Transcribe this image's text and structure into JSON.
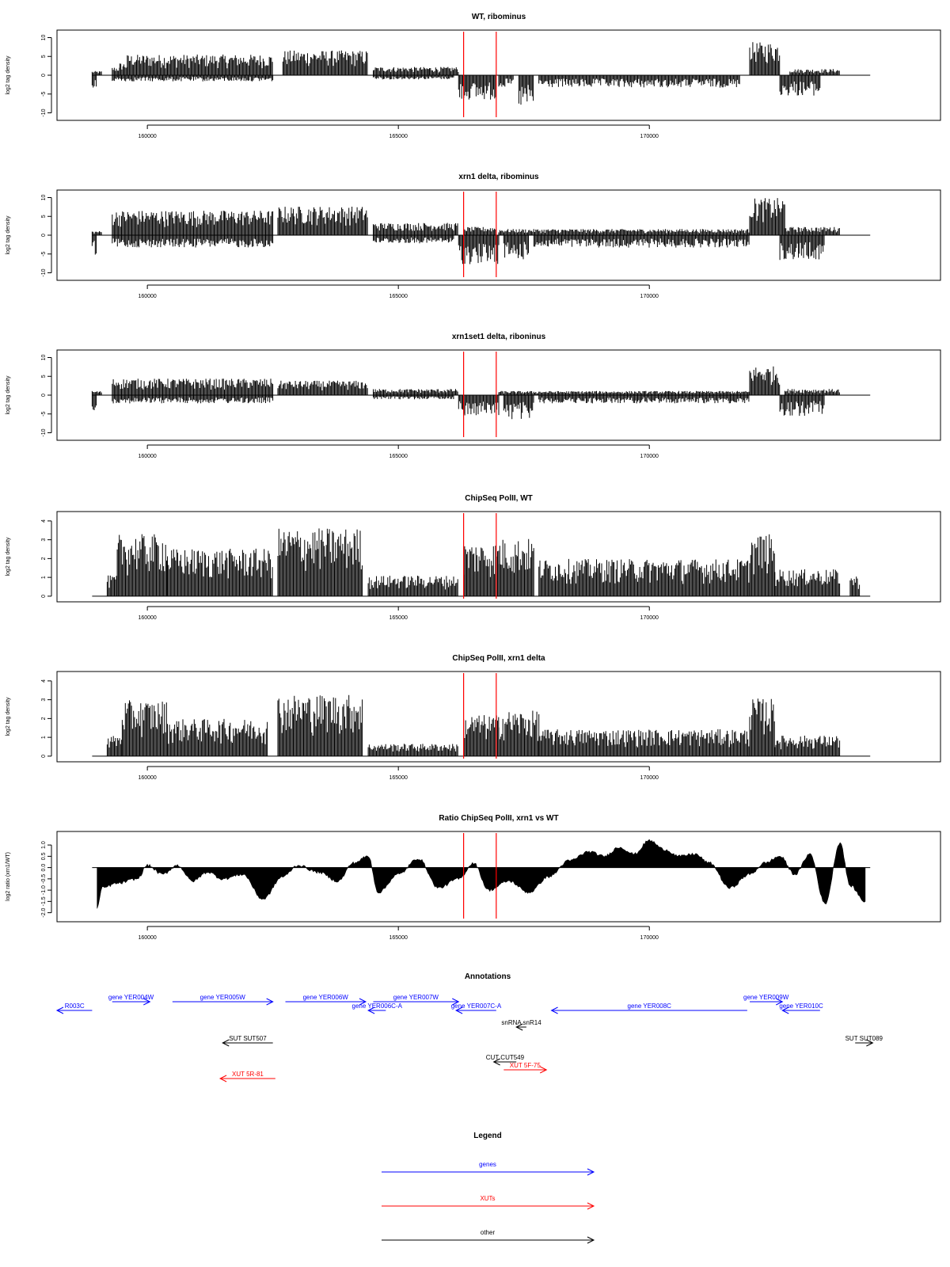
{
  "chart_data": [
    {
      "type": "bar",
      "title": "WT, ribominus",
      "ylabel": "log2 tag density",
      "xlim": [
        158200,
        175800
      ],
      "ylim": [
        -12,
        12
      ],
      "yticks": [
        -10,
        -5,
        0,
        5,
        10
      ],
      "xticks": [
        160000,
        165000,
        170000
      ],
      "marker_positions": [
        166300,
        166950
      ],
      "marker_color": "#ff0000",
      "series": [
        {
          "strand": "plus",
          "segments": [
            {
              "x": [
                158900,
                159100
              ],
              "level": 1
            },
            {
              "x": [
                159300,
                159450
              ],
              "level": 2
            },
            {
              "x": [
                159450,
                159600
              ],
              "level": 3
            },
            {
              "x": [
                159600,
                162500
              ],
              "level": 5
            },
            {
              "x": [
                162700,
                164400
              ],
              "level": 6
            },
            {
              "x": [
                164500,
                165600
              ],
              "level": 2
            },
            {
              "x": [
                165600,
                166200
              ],
              "level": 2
            },
            {
              "x": [
                172000,
                172600
              ],
              "level": 8
            },
            {
              "x": [
                172800,
                173800
              ],
              "level": 1.5
            }
          ]
        },
        {
          "strand": "minus",
          "segments": [
            {
              "x": [
                158900,
                159000
              ],
              "level": -4
            },
            {
              "x": [
                159300,
                162500
              ],
              "level": -1.5
            },
            {
              "x": [
                164500,
                166100
              ],
              "level": -1
            },
            {
              "x": [
                166200,
                166950
              ],
              "level": -6
            },
            {
              "x": [
                167000,
                167300
              ],
              "level": -3
            },
            {
              "x": [
                167400,
                167700
              ],
              "level": -8
            },
            {
              "x": [
                167800,
                171800
              ],
              "level": -3
            },
            {
              "x": [
                172600,
                173400
              ],
              "level": -5
            }
          ]
        }
      ]
    },
    {
      "type": "bar",
      "title": "xrn1 delta, ribominus",
      "ylabel": "log2 tag density",
      "xlim": [
        158200,
        175800
      ],
      "ylim": [
        -12,
        12
      ],
      "yticks": [
        -10,
        -5,
        0,
        5,
        10
      ],
      "xticks": [
        160000,
        165000,
        170000
      ],
      "marker_positions": [
        166300,
        166950
      ],
      "marker_color": "#ff0000",
      "series": [
        {
          "strand": "plus",
          "segments": [
            {
              "x": [
                158900,
                159100
              ],
              "level": 1
            },
            {
              "x": [
                159300,
                162500
              ],
              "level": 6
            },
            {
              "x": [
                162600,
                164400
              ],
              "level": 7
            },
            {
              "x": [
                164500,
                166200
              ],
              "level": 3
            },
            {
              "x": [
                166300,
                166950
              ],
              "level": 2
            },
            {
              "x": [
                167000,
                172000
              ],
              "level": 1.5
            },
            {
              "x": [
                172000,
                172700
              ],
              "level": 9
            },
            {
              "x": [
                172700,
                173800
              ],
              "level": 2
            }
          ]
        },
        {
          "strand": "minus",
          "segments": [
            {
              "x": [
                158900,
                159000
              ],
              "level": -5
            },
            {
              "x": [
                159300,
                162500
              ],
              "level": -3
            },
            {
              "x": [
                164500,
                166100
              ],
              "level": -2
            },
            {
              "x": [
                166200,
                167000
              ],
              "level": -7
            },
            {
              "x": [
                167100,
                167600
              ],
              "level": -6
            },
            {
              "x": [
                167700,
                172000
              ],
              "level": -3
            },
            {
              "x": [
                172600,
                173500
              ],
              "level": -6
            }
          ]
        }
      ]
    },
    {
      "type": "bar",
      "title": "xrn1set1 delta, riboninus",
      "ylabel": "log2 tag density",
      "xlim": [
        158200,
        175800
      ],
      "ylim": [
        -12,
        12
      ],
      "yticks": [
        -10,
        -5,
        0,
        5,
        10
      ],
      "xticks": [
        160000,
        165000,
        170000
      ],
      "marker_positions": [
        166300,
        166950
      ],
      "marker_color": "#ff0000",
      "series": [
        {
          "strand": "plus",
          "segments": [
            {
              "x": [
                158900,
                159100
              ],
              "level": 1
            },
            {
              "x": [
                159300,
                162500
              ],
              "level": 4
            },
            {
              "x": [
                162600,
                164400
              ],
              "level": 3.5
            },
            {
              "x": [
                164500,
                166200
              ],
              "level": 1.5
            },
            {
              "x": [
                167000,
                172000
              ],
              "level": 1
            },
            {
              "x": [
                172000,
                172600
              ],
              "level": 7
            },
            {
              "x": [
                172700,
                173800
              ],
              "level": 1.5
            }
          ]
        },
        {
          "strand": "minus",
          "segments": [
            {
              "x": [
                158900,
                159000
              ],
              "level": -4
            },
            {
              "x": [
                159300,
                162500
              ],
              "level": -2
            },
            {
              "x": [
                164500,
                166100
              ],
              "level": -1
            },
            {
              "x": [
                166200,
                167000
              ],
              "level": -5
            },
            {
              "x": [
                167100,
                167700
              ],
              "level": -6
            },
            {
              "x": [
                167800,
                172000
              ],
              "level": -2
            },
            {
              "x": [
                172600,
                173500
              ],
              "level": -5
            }
          ]
        }
      ]
    },
    {
      "type": "bar",
      "title": "ChipSeq PolII, WT",
      "ylabel": "log2 tag density",
      "xlim": [
        158200,
        175800
      ],
      "ylim": [
        -0.3,
        4.5
      ],
      "yticks": [
        0,
        1,
        2,
        3,
        4
      ],
      "xticks": [
        160000,
        165000,
        170000
      ],
      "marker_positions": [
        166300,
        166950
      ],
      "marker_color": "#ff0000",
      "series": [
        {
          "strand": "plus",
          "segments": [
            {
              "x": [
                159200,
                159400
              ],
              "level": 1
            },
            {
              "x": [
                159400,
                160400
              ],
              "level": 3
            },
            {
              "x": [
                160400,
                162500
              ],
              "level": 2.3
            },
            {
              "x": [
                162600,
                164300
              ],
              "level": 3.3
            },
            {
              "x": [
                164400,
                166200
              ],
              "level": 1
            },
            {
              "x": [
                166300,
                167000
              ],
              "level": 2.6
            },
            {
              "x": [
                167000,
                167700
              ],
              "level": 2.8
            },
            {
              "x": [
                167800,
                172000
              ],
              "level": 1.8
            },
            {
              "x": [
                172000,
                172500
              ],
              "level": 3
            },
            {
              "x": [
                172500,
                173800
              ],
              "level": 1.3
            },
            {
              "x": [
                174000,
                174200
              ],
              "level": 1
            }
          ]
        }
      ]
    },
    {
      "type": "bar",
      "title": "ChipSeq PolII, xrn1 delta",
      "ylabel": "log2 tag density",
      "xlim": [
        158200,
        175800
      ],
      "ylim": [
        -0.3,
        4.5
      ],
      "yticks": [
        0,
        1,
        2,
        3,
        4
      ],
      "xticks": [
        160000,
        165000,
        170000
      ],
      "marker_positions": [
        166300,
        166950
      ],
      "marker_color": "#ff0000",
      "series": [
        {
          "strand": "plus",
          "segments": [
            {
              "x": [
                159200,
                159500
              ],
              "level": 1
            },
            {
              "x": [
                159500,
                160400
              ],
              "level": 2.7
            },
            {
              "x": [
                160400,
                162400
              ],
              "level": 1.8
            },
            {
              "x": [
                162600,
                164300
              ],
              "level": 3
            },
            {
              "x": [
                164400,
                166200
              ],
              "level": 0.6
            },
            {
              "x": [
                166300,
                167000
              ],
              "level": 2
            },
            {
              "x": [
                167000,
                167800
              ],
              "level": 2.2
            },
            {
              "x": [
                167800,
                172000
              ],
              "level": 1.3
            },
            {
              "x": [
                172000,
                172500
              ],
              "level": 2.8
            },
            {
              "x": [
                172500,
                173800
              ],
              "level": 1
            }
          ]
        }
      ]
    },
    {
      "type": "area",
      "title": "Ratio ChipSeq PolII, xrn1 vs WT",
      "ylabel": "log2 ratio (xrn1/WT)",
      "xlim": [
        158200,
        175800
      ],
      "ylim": [
        -2.4,
        1.6
      ],
      "yticks": [
        -2,
        -1.5,
        -1,
        -0.5,
        0,
        0.5,
        1
      ],
      "ytick_labels": [
        "-2.0",
        "-1.5",
        "-1.0",
        "-0.5",
        "0.0",
        "0.5",
        "1.0"
      ],
      "xticks": [
        160000,
        165000,
        170000
      ],
      "marker_positions": [
        166300,
        166950
      ],
      "marker_color": "#ff0000",
      "x": [
        159000,
        159100,
        159400,
        159800,
        160000,
        160300,
        160600,
        160900,
        161200,
        161500,
        161900,
        162300,
        162700,
        163000,
        163400,
        163800,
        164100,
        164400,
        164600,
        165000,
        165400,
        165800,
        166200,
        166500,
        166800,
        167200,
        167600,
        168000,
        168400,
        168800,
        169100,
        169400,
        169700,
        170000,
        170300,
        170600,
        170900,
        171200,
        171600,
        172000,
        172300,
        172600,
        172900,
        173200,
        173500,
        173800,
        174000,
        174300
      ],
      "y": [
        -1.8,
        -0.9,
        -0.7,
        -0.5,
        0.1,
        -0.3,
        0.1,
        -0.6,
        -0.2,
        -0.5,
        -0.3,
        -1.4,
        -0.4,
        0.1,
        -0.2,
        -0.6,
        0.2,
        0.5,
        -1.1,
        -0.3,
        0.4,
        -0.9,
        -0.5,
        0.2,
        -1.0,
        -0.6,
        -1.1,
        -0.4,
        0.3,
        0.7,
        0.5,
        0.9,
        0.6,
        1.2,
        0.8,
        0.5,
        0.6,
        0.2,
        -0.9,
        -0.3,
        0.2,
        0.5,
        -0.3,
        0.6,
        -1.6,
        1.1,
        -0.8,
        -1.5
      ]
    }
  ],
  "annotations": {
    "title": "Annotations",
    "features": [
      {
        "label": "R003C",
        "type": "gene",
        "strand": "-",
        "start": 158200,
        "end": 158900,
        "row": 1
      },
      {
        "label": "gene YER004W",
        "type": "gene",
        "strand": "+",
        "start": 159300,
        "end": 160050,
        "row": 0
      },
      {
        "label": "gene YER005W",
        "type": "gene",
        "strand": "+",
        "start": 160500,
        "end": 162500,
        "row": 0
      },
      {
        "label": "gene YER006W",
        "type": "gene",
        "strand": "+",
        "start": 162750,
        "end": 164350,
        "row": 0
      },
      {
        "label": "gene YER006C-A",
        "type": "gene",
        "strand": "-",
        "start": 164400,
        "end": 164750,
        "row": 1
      },
      {
        "label": "gene YER007W",
        "type": "gene",
        "strand": "+",
        "start": 164500,
        "end": 166200,
        "row": 0
      },
      {
        "label": "gene YER007C-A",
        "type": "gene",
        "strand": "-",
        "start": 166150,
        "end": 166950,
        "row": 1
      },
      {
        "label": "gene YER008C",
        "type": "gene",
        "strand": "-",
        "start": 168050,
        "end": 171950,
        "row": 1
      },
      {
        "label": "gene YER009W",
        "type": "gene",
        "strand": "+",
        "start": 172000,
        "end": 172650,
        "row": 0
      },
      {
        "label": "gene YER010C",
        "type": "gene",
        "strand": "-",
        "start": 172650,
        "end": 173400,
        "row": 1
      },
      {
        "label": "snRNA snR14",
        "type": "other",
        "strand": "-",
        "start": 167350,
        "end": 167550,
        "row": 2
      },
      {
        "label": "SUT SUT507",
        "type": "other",
        "strand": "-",
        "start": 161500,
        "end": 162500,
        "row": 3
      },
      {
        "label": "SUT SUT089",
        "type": "other",
        "strand": "+",
        "start": 174100,
        "end": 174450,
        "row": 3
      },
      {
        "label": "CUT CUT549",
        "type": "other",
        "strand": "-",
        "start": 166900,
        "end": 167350,
        "row": 4
      },
      {
        "label": "XUT 5F-75",
        "type": "XUT",
        "strand": "+",
        "start": 167100,
        "end": 167950,
        "row": 5
      },
      {
        "label": "XUT 5R-81",
        "type": "XUT",
        "strand": "-",
        "start": 161450,
        "end": 162550,
        "row": 6
      }
    ]
  },
  "legend": {
    "title": "Legend",
    "items": [
      {
        "label": "genes",
        "color": "#0000ff"
      },
      {
        "label": "XUTs",
        "color": "#ff0000"
      },
      {
        "label": "other",
        "color": "#000000"
      }
    ]
  },
  "colors": {
    "gene": "#0000ff",
    "XUT": "#ff0000",
    "other": "#000000",
    "marker": "#ff0000",
    "data": "#000000"
  }
}
